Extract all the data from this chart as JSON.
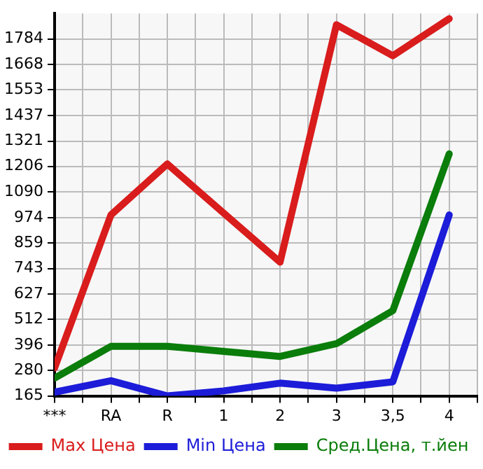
{
  "chart_data": {
    "type": "line",
    "categories": [
      "***",
      "RA",
      "R",
      "1",
      "2",
      "3",
      "3,5",
      "4"
    ],
    "series": [
      {
        "name": "Max Цена",
        "color": "#d91c1c",
        "values": [
          292,
          986,
          1217,
          994,
          772,
          1849,
          1708,
          1876
        ]
      },
      {
        "name": "Min Цена",
        "color": "#1c1cd9",
        "values": [
          182,
          234,
          165,
          188,
          223,
          200,
          229,
          986
        ]
      },
      {
        "name": "Сред.Цена, т.йен",
        "color": "#0a7d0a",
        "values": [
          246,
          390,
          390,
          367,
          344,
          402,
          552,
          1263
        ]
      }
    ],
    "ylim": [
      165,
      1900
    ],
    "yticks": [
      165,
      280,
      396,
      512,
      627,
      743,
      859,
      974,
      1090,
      1206,
      1321,
      1437,
      1553,
      1668,
      1784
    ],
    "grid": true,
    "legend": "bottom",
    "marker": "none",
    "line_style": "solid"
  }
}
